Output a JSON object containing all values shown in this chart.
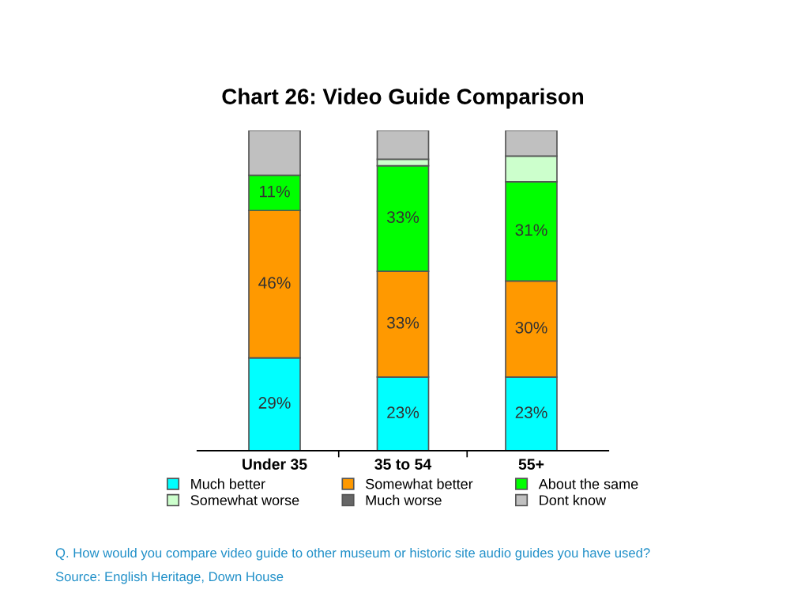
{
  "chart_data": {
    "type": "bar",
    "stacked": true,
    "title": "Chart 26: Video Guide Comparison",
    "categories": [
      "Under 35",
      "35 to 54",
      "55+"
    ],
    "series": [
      {
        "name": "Much better",
        "color": "#00ffff",
        "values": [
          29,
          23,
          23
        ],
        "value_labels": [
          "29%",
          "23%",
          "23%"
        ]
      },
      {
        "name": "Somewhat better",
        "color": "#ff9900",
        "values": [
          46,
          33,
          30
        ],
        "value_labels": [
          "46%",
          "33%",
          "30%"
        ]
      },
      {
        "name": "About the same",
        "color": "#00ff00",
        "values": [
          11,
          33,
          31
        ],
        "value_labels": [
          "11%",
          "33%",
          "31%"
        ]
      },
      {
        "name": "Somewhat worse",
        "color": "#ccffcc",
        "values": [
          0,
          2,
          8
        ],
        "value_labels": [
          null,
          null,
          null
        ]
      },
      {
        "name": "Much worse",
        "color": "#666666",
        "values": [
          0,
          0,
          0
        ],
        "value_labels": [
          null,
          null,
          null
        ]
      },
      {
        "name": "Dont know",
        "color": "#c0c0c0",
        "values": [
          14,
          9,
          8
        ],
        "value_labels": [
          null,
          null,
          null
        ]
      }
    ],
    "legend": "bottom",
    "annotations": [
      "Q. How would you compare video guide to other museum or historic site audio guides you have used?",
      "Source: English Heritage, Down House"
    ]
  }
}
